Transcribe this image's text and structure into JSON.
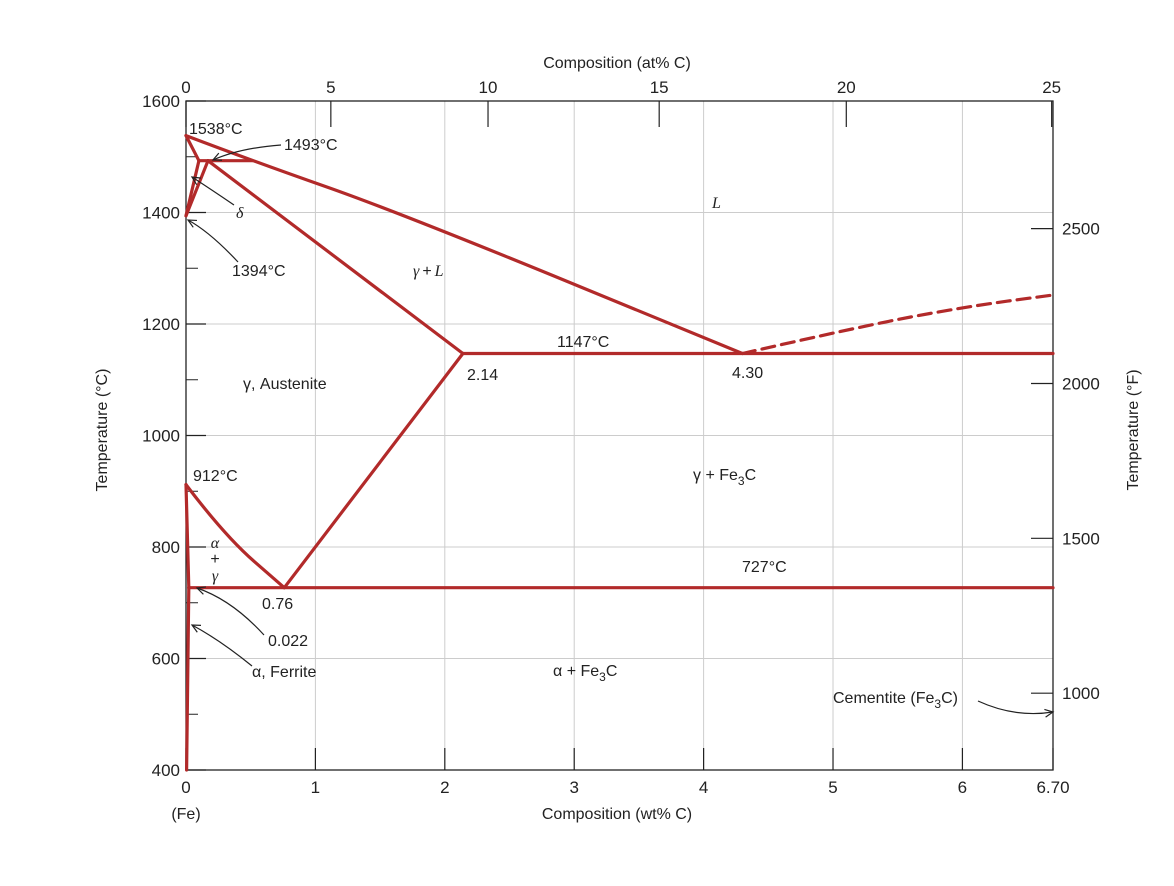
{
  "colors": {
    "phase_line": "#b22a2a",
    "grid": "#cccccc",
    "axis": "#222222",
    "text": "#222222"
  },
  "chart_data": {
    "type": "line",
    "title": "",
    "xlabel": "Composition (wt% C)",
    "x_origin_label": "(Fe)",
    "xlim": [
      0,
      6.7
    ],
    "x_ticks": [
      0,
      1,
      2,
      3,
      4,
      5,
      6,
      6.7
    ],
    "x_tick_labels": [
      "0",
      "1",
      "2",
      "3",
      "4",
      "5",
      "6",
      "6.70"
    ],
    "top_xlabel": "Composition (at% C)",
    "top_x_ticks_at": [
      0,
      5,
      10,
      15,
      20,
      25
    ],
    "top_x_tick_labels": [
      "0",
      "5",
      "10",
      "15",
      "20",
      "25"
    ],
    "ylabel": "Temperature (°C)",
    "ylim": [
      400,
      1600
    ],
    "y_ticks": [
      400,
      600,
      800,
      1000,
      1200,
      1400,
      1600
    ],
    "y_tick_labels": [
      "400",
      "600",
      "800",
      "1000",
      "1200",
      "1400",
      "1600"
    ],
    "right_ylabel": "Temperature (°F)",
    "right_y_ticks_f": [
      1000,
      1500,
      2000,
      2500
    ],
    "right_y_tick_labels": [
      "1000",
      "1500",
      "2000",
      "2500"
    ],
    "grid": true,
    "series": [
      {
        "style": "solid",
        "points": [
          [
            0,
            1538
          ],
          [
            0.1,
            1493
          ]
        ]
      },
      {
        "style": "solid",
        "points": [
          [
            0,
            1538
          ],
          [
            0.51,
            1493
          ],
          [
            1.65,
            1400
          ],
          [
            4.3,
            1147
          ]
        ]
      },
      {
        "style": "solid",
        "points": [
          [
            0.1,
            1493
          ],
          [
            0.51,
            1493
          ]
        ]
      },
      {
        "style": "solid",
        "points": [
          [
            0.1,
            1493
          ],
          [
            0,
            1394
          ]
        ]
      },
      {
        "style": "solid",
        "points": [
          [
            0.17,
            1493
          ],
          [
            0,
            1394
          ]
        ]
      },
      {
        "style": "solid",
        "points": [
          [
            0.17,
            1493
          ],
          [
            2.14,
            1147
          ]
        ]
      },
      {
        "style": "solid",
        "points": [
          [
            2.14,
            1147
          ],
          [
            6.7,
            1147
          ]
        ]
      },
      {
        "style": "solid",
        "points": [
          [
            2.14,
            1147
          ],
          [
            0.76,
            727
          ]
        ]
      },
      {
        "style": "solid",
        "points": [
          [
            0,
            912
          ],
          [
            0.3,
            820
          ],
          [
            0.76,
            727
          ]
        ]
      },
      {
        "style": "solid",
        "points": [
          [
            0,
            912
          ],
          [
            0.022,
            727
          ]
        ]
      },
      {
        "style": "solid",
        "points": [
          [
            0.022,
            727
          ],
          [
            6.7,
            727
          ]
        ]
      },
      {
        "style": "solid",
        "points": [
          [
            0.022,
            727
          ],
          [
            0.005,
            400
          ]
        ]
      },
      {
        "style": "dashed",
        "points": [
          [
            4.3,
            1147
          ],
          [
            5.2,
            1195
          ],
          [
            6.0,
            1230
          ],
          [
            6.7,
            1252
          ]
        ]
      }
    ],
    "annotations": [
      {
        "text": "1538°C",
        "x": 0.0,
        "y": 1538
      },
      {
        "text": "1493°C",
        "x": 0.17,
        "y": 1493
      },
      {
        "text": "δ",
        "x": 0.05,
        "y": 1480
      },
      {
        "text": "1394°C",
        "x": 0.0,
        "y": 1394
      },
      {
        "text": "L",
        "x": 4.1,
        "y": 1420
      },
      {
        "text": "γ + L",
        "x": 1.85,
        "y": 1270
      },
      {
        "text": "1147°C",
        "x": 3.2,
        "y": 1147
      },
      {
        "text": "2.14",
        "x": 2.14,
        "y": 1147
      },
      {
        "text": "4.30",
        "x": 4.3,
        "y": 1147
      },
      {
        "text": "γ, Austenite",
        "x": 0.7,
        "y": 1100
      },
      {
        "text": "912°C",
        "x": 0.0,
        "y": 912
      },
      {
        "text": "γ + Fe₃C",
        "x": 4.1,
        "y": 900
      },
      {
        "text": "α + γ",
        "x": 0.2,
        "y": 780
      },
      {
        "text": "727°C",
        "x": 4.7,
        "y": 727
      },
      {
        "text": "0.76",
        "x": 0.76,
        "y": 727
      },
      {
        "text": "0.022",
        "x": 0.022,
        "y": 727
      },
      {
        "text": "α, Ferrite",
        "x": 0.03,
        "y": 650
      },
      {
        "text": "α + Fe₃C",
        "x": 3.2,
        "y": 620
      },
      {
        "text": "Cementite (Fe₃C)",
        "x": 6.7,
        "y": 540
      }
    ]
  },
  "labels": {
    "t1538": "1538°C",
    "t1493": "1493°C",
    "delta": "δ",
    "t1394": "1394°C",
    "L": "L",
    "gammaL_g": "γ",
    "gammaL_plus": "+",
    "gammaL_L": "L",
    "t1147": "1147°C",
    "c214": "2.14",
    "c430": "4.30",
    "austenite": "γ, Austenite",
    "t912": "912°C",
    "gammaFe3C_pre": "γ + Fe",
    "gammaFe3C_sub": "3",
    "gammaFe3C_post": "C",
    "ag_alpha": "α",
    "ag_plus": "+",
    "ag_gamma": "γ",
    "t727": "727°C",
    "c076": "0.76",
    "c0022": "0.022",
    "ferrite": "α, Ferrite",
    "alphaFe3C_pre": "α + Fe",
    "alphaFe3C_sub": "3",
    "alphaFe3C_post": "C",
    "cementite_pre": "Cementite (Fe",
    "cementite_sub": "3",
    "cementite_post": "C)"
  }
}
